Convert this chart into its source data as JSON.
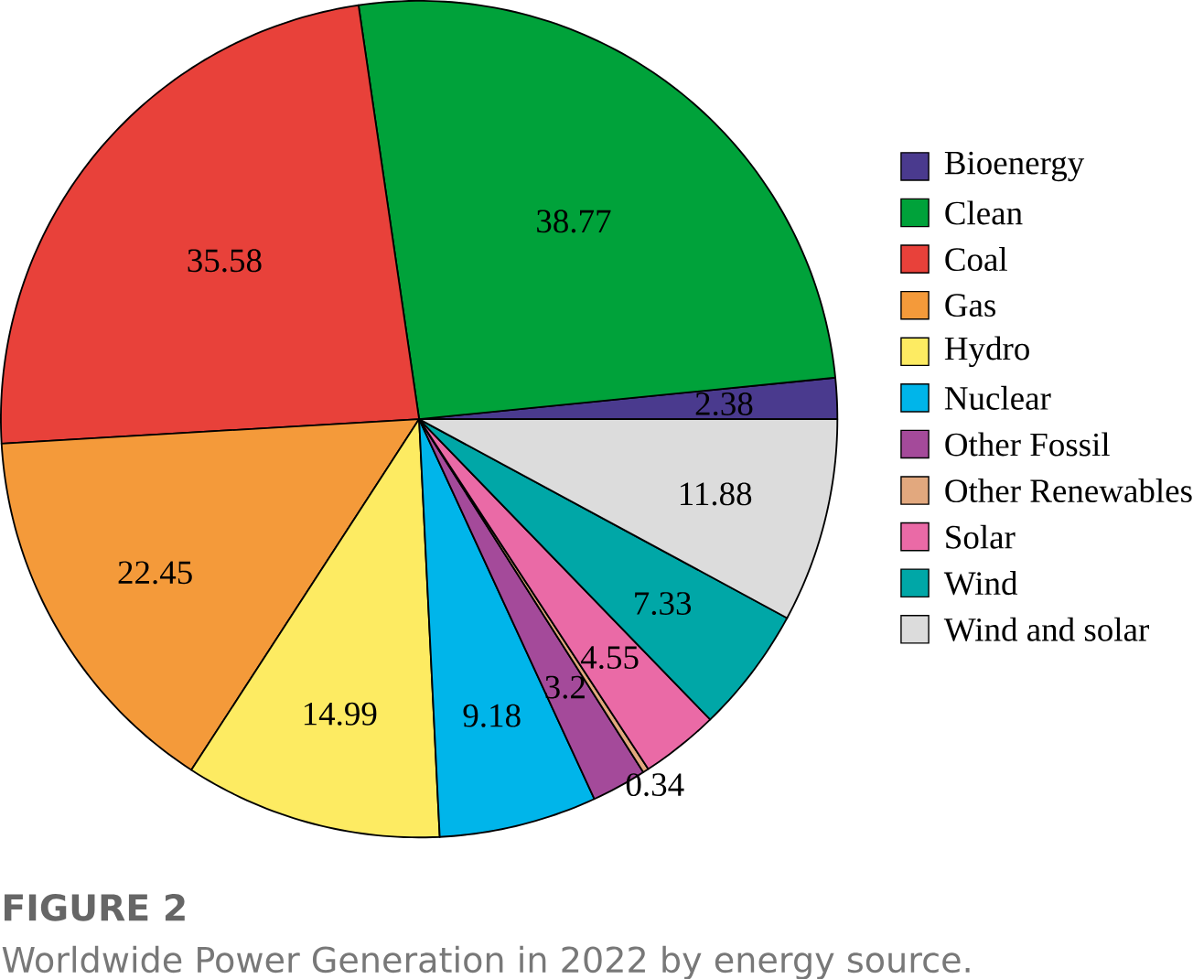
{
  "chart_data": {
    "type": "pie",
    "title": "FIGURE 2",
    "subtitle": "Worldwide Power Generation in 2022 by energy source.",
    "categories": [
      "Bioenergy",
      "Clean",
      "Coal",
      "Gas",
      "Hydro",
      "Nuclear",
      "Other Fossil",
      "Other Renewables",
      "Solar",
      "Wind",
      "Wind and solar"
    ],
    "values": [
      2.38,
      38.77,
      35.58,
      22.45,
      14.99,
      9.18,
      3.2,
      0.34,
      4.55,
      7.33,
      11.88
    ],
    "colors": [
      "#4a3a8e",
      "#00a23a",
      "#e8413a",
      "#f49a3a",
      "#fdeb62",
      "#00b5ea",
      "#a44a9a",
      "#e2a87e",
      "#ea6aa6",
      "#00a7a7",
      "#dcdcdc"
    ],
    "data_labels": true,
    "legend": "right"
  }
}
